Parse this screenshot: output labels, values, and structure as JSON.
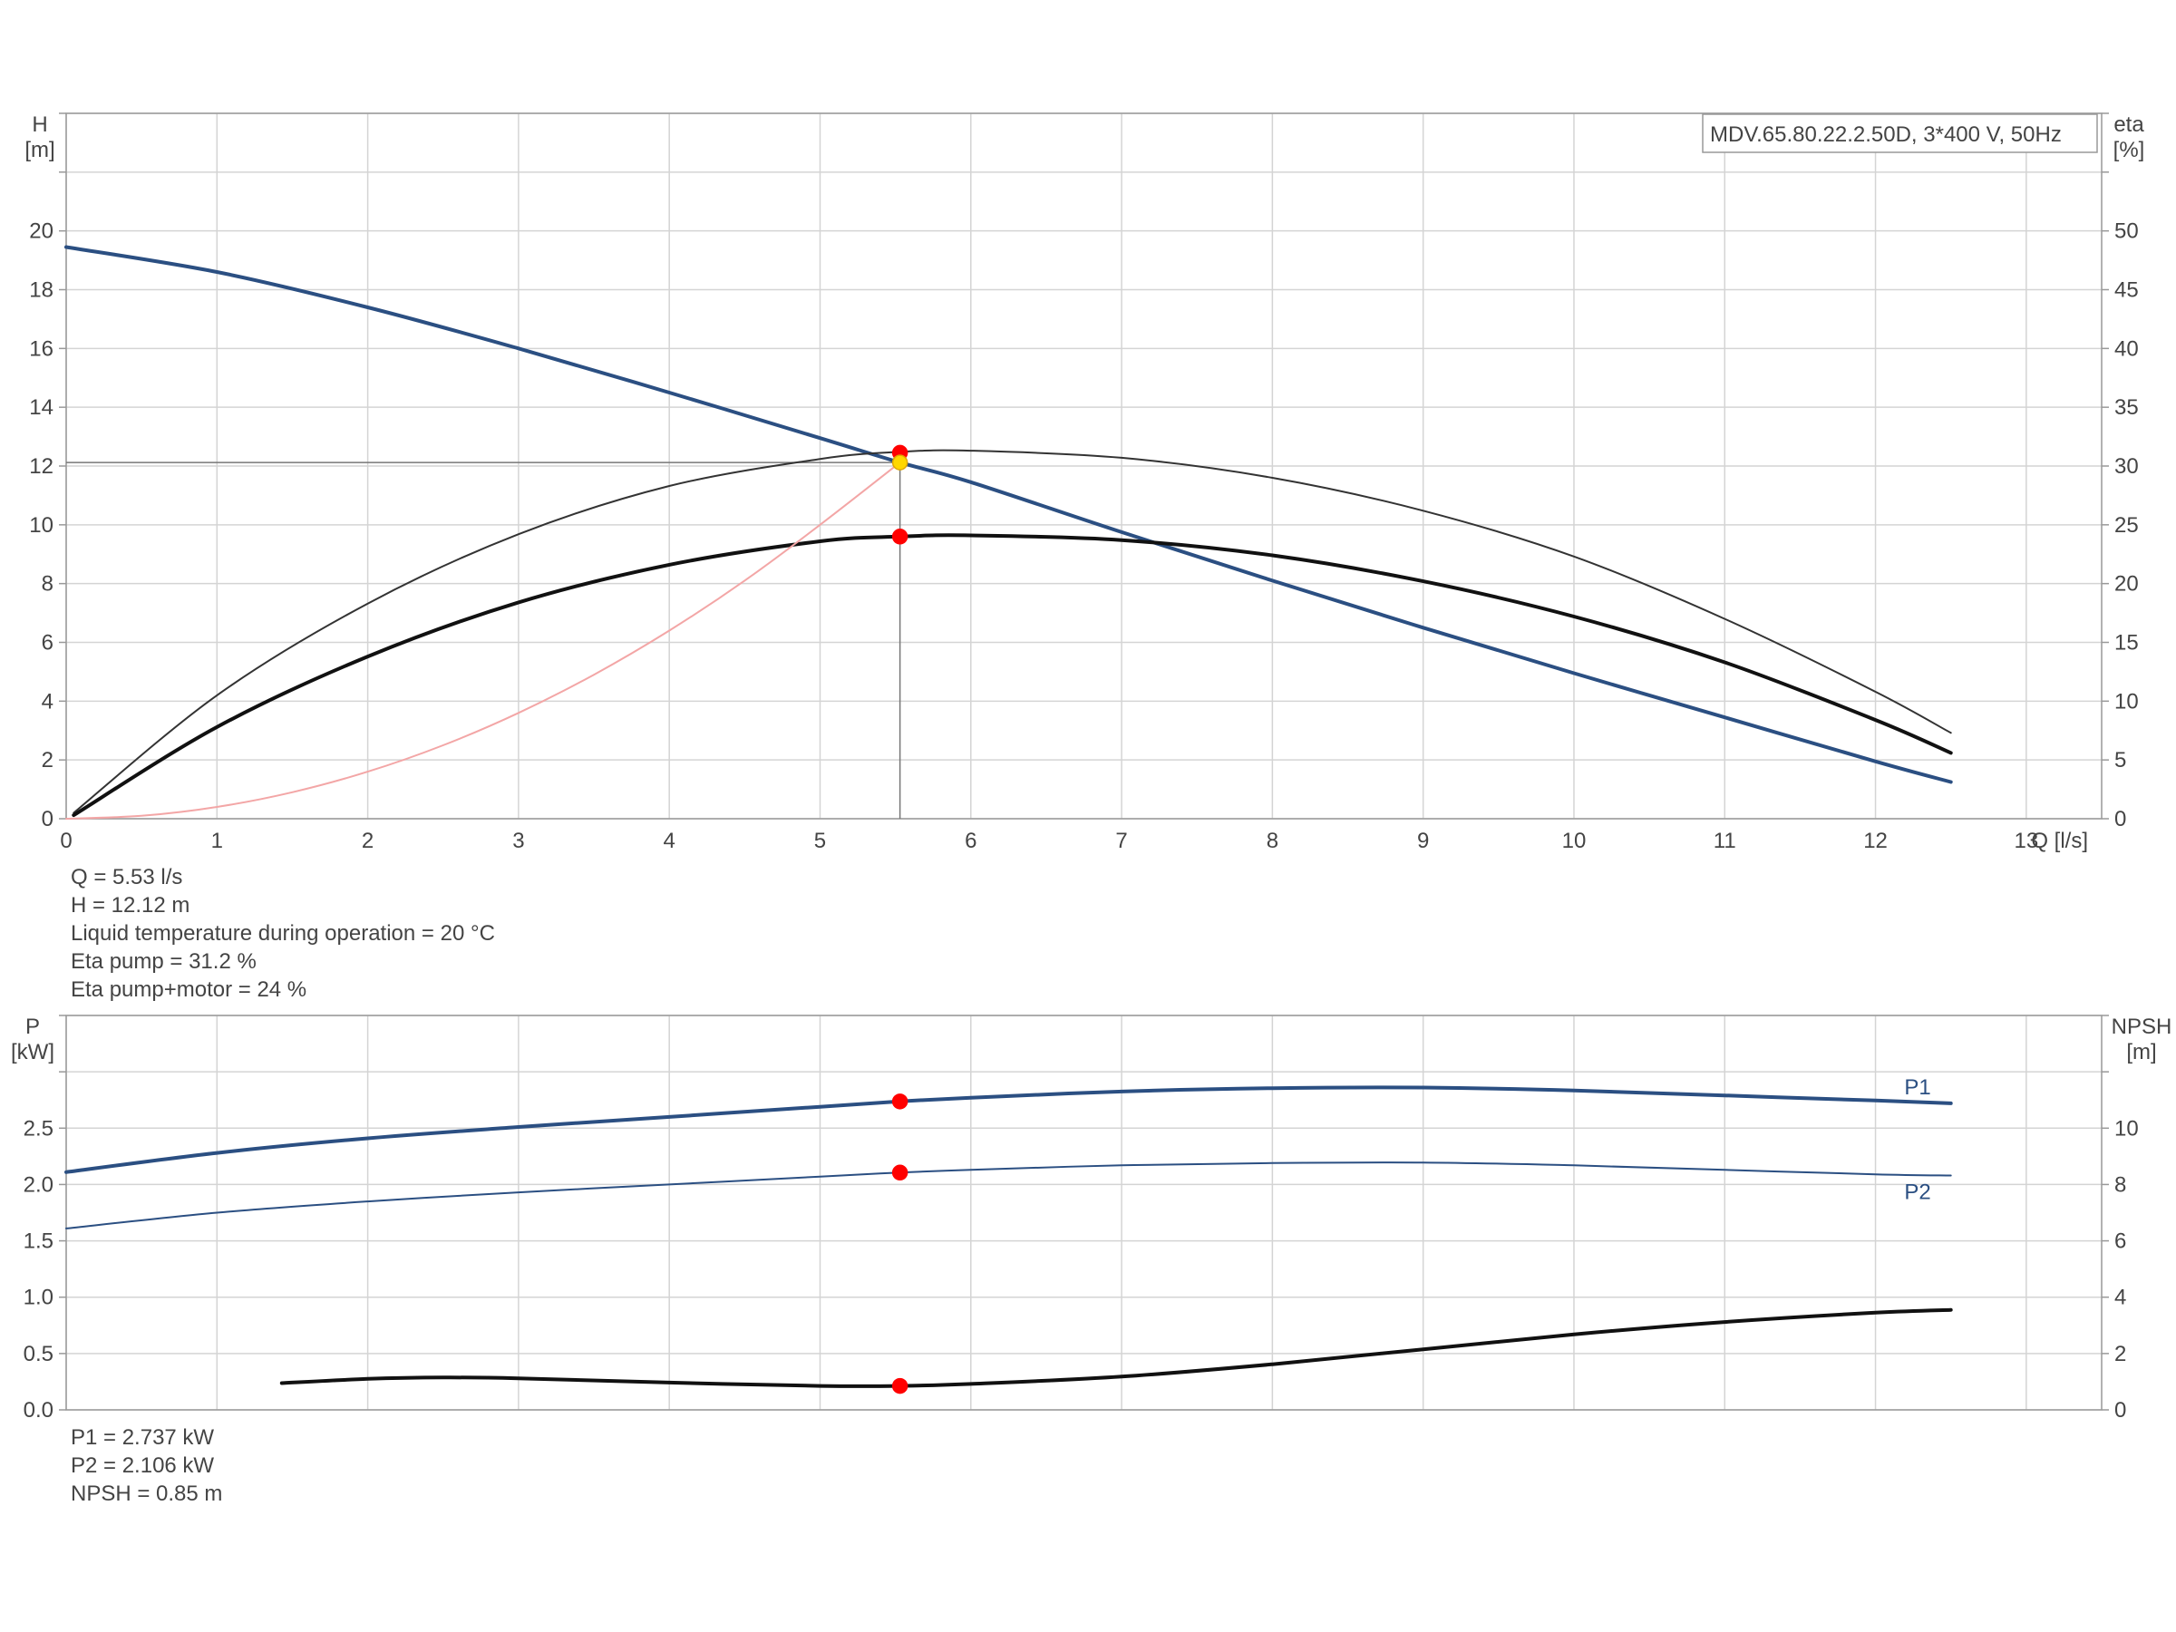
{
  "chart_data": [
    {
      "type": "line",
      "title": "MDV.65.80.22.2.50D, 3*400 V, 50Hz",
      "x_axis": {
        "label": "Q [l/s]",
        "range": [
          0,
          13.5
        ],
        "ticks": [
          0,
          1,
          2,
          3,
          4,
          5,
          6,
          7,
          8,
          9,
          10,
          11,
          12,
          13
        ],
        "tick_labels": [
          "0",
          "1",
          "2",
          "3",
          "4",
          "5",
          "6",
          "7",
          "8",
          "9",
          "10",
          "11",
          "12",
          "13"
        ]
      },
      "y_axis_left": {
        "label_line1": "H",
        "label_line2": "[m]",
        "range": [
          0,
          24
        ],
        "ticks": [
          0,
          2,
          4,
          6,
          8,
          10,
          12,
          14,
          16,
          18,
          20,
          22,
          24
        ],
        "tick_labels": [
          "0",
          "2",
          "4",
          "6",
          "8",
          "10",
          "12",
          "14",
          "16",
          "18",
          "20",
          "",
          ""
        ]
      },
      "y_axis_right": {
        "label_line1": "eta",
        "label_line2": "[%]",
        "range": [
          0,
          60
        ],
        "ticks": [
          0,
          5,
          10,
          15,
          20,
          25,
          30,
          35,
          40,
          45,
          50,
          55,
          60
        ],
        "tick_labels": [
          "0",
          "5",
          "10",
          "15",
          "20",
          "25",
          "30",
          "35",
          "40",
          "45",
          "50",
          "",
          ""
        ]
      },
      "grid": true,
      "legend": "top-right",
      "series": [
        {
          "key": "head",
          "axis": "left",
          "color": "#2b4f82",
          "width": 4,
          "x": [
            0,
            1,
            2,
            3,
            4,
            5,
            5.53,
            6,
            7,
            8,
            9,
            10,
            11,
            12,
            12.5
          ],
          "y": [
            19.45,
            18.6,
            17.4,
            16.0,
            14.5,
            12.95,
            12.12,
            11.45,
            9.75,
            8.1,
            6.5,
            4.95,
            3.45,
            1.95,
            1.25
          ]
        },
        {
          "key": "eta-pump",
          "axis": "right",
          "color": "#333333",
          "width": 2,
          "x": [
            0.05,
            1,
            2,
            3,
            4,
            5,
            5.53,
            6,
            7,
            8,
            9,
            10,
            11,
            12,
            12.5
          ],
          "y": [
            0.5,
            10.5,
            18.3,
            24.2,
            28.3,
            30.6,
            31.2,
            31.3,
            30.7,
            29.0,
            26.2,
            22.3,
            17.0,
            10.8,
            7.3
          ]
        },
        {
          "key": "eta-pump-motor",
          "axis": "right",
          "color": "#111111",
          "width": 4,
          "x": [
            0.05,
            1,
            2,
            3,
            4,
            5,
            5.53,
            6,
            7,
            8,
            9,
            10,
            11,
            12,
            12.5
          ],
          "y": [
            0.3,
            7.8,
            13.8,
            18.4,
            21.6,
            23.6,
            24.0,
            24.1,
            23.7,
            22.4,
            20.2,
            17.2,
            13.3,
            8.4,
            5.6
          ]
        },
        {
          "key": "system-curve",
          "axis": "left",
          "color": "#f3a6a6",
          "width": 2,
          "x": [
            0,
            0.5,
            1,
            1.5,
            2,
            2.5,
            3,
            3.5,
            4,
            4.5,
            5,
            5.53
          ],
          "y": [
            0,
            0.1,
            0.4,
            0.9,
            1.6,
            2.5,
            3.6,
            4.9,
            6.4,
            8.1,
            10.0,
            12.12
          ]
        }
      ],
      "operating_point": {
        "q": 5.53,
        "h": 12.12
      },
      "markers": [
        {
          "x": 5.53,
          "y": 12.45,
          "axis": "left",
          "color": "#ff0000"
        },
        {
          "x": 5.53,
          "y": 24.0,
          "axis": "right",
          "color": "#ff0000"
        },
        {
          "x": 5.53,
          "y": 12.12,
          "axis": "left",
          "color": "#ffd700"
        }
      ]
    },
    {
      "type": "line",
      "x_axis": {
        "range": [
          0,
          13.5
        ],
        "ticks": [
          0,
          1,
          2,
          3,
          4,
          5,
          6,
          7,
          8,
          9,
          10,
          11,
          12,
          13
        ]
      },
      "y_axis_left": {
        "label_line1": "P",
        "label_line2": "[kW]",
        "range": [
          0,
          3.5
        ],
        "ticks": [
          0,
          0.5,
          1.0,
          1.5,
          2.0,
          2.5,
          3.0,
          3.5
        ],
        "tick_labels": [
          "0.0",
          "0.5",
          "1.0",
          "1.5",
          "2.0",
          "2.5",
          "",
          ""
        ]
      },
      "y_axis_right": {
        "label_line1": "NPSH",
        "label_line2": "[m]",
        "range": [
          0,
          14
        ],
        "ticks": [
          0,
          2,
          4,
          6,
          8,
          10,
          12,
          14
        ],
        "tick_labels": [
          "0",
          "2",
          "4",
          "6",
          "8",
          "10",
          "",
          ""
        ]
      },
      "grid": true,
      "series": [
        {
          "key": "p1",
          "name": "P1",
          "axis": "left",
          "color": "#2b4f82",
          "width": 4,
          "x": [
            0,
            1,
            2,
            3,
            4,
            5,
            5.53,
            6,
            7,
            8,
            9,
            10,
            11,
            12,
            12.5
          ],
          "y": [
            2.11,
            2.28,
            2.41,
            2.51,
            2.6,
            2.69,
            2.737,
            2.77,
            2.825,
            2.855,
            2.86,
            2.835,
            2.79,
            2.745,
            2.72
          ]
        },
        {
          "key": "p2",
          "name": "P2",
          "axis": "left",
          "color": "#2b4f82",
          "width": 2,
          "x": [
            0,
            1,
            2,
            3,
            4,
            5,
            5.53,
            6,
            7,
            8,
            9,
            10,
            11,
            12,
            12.5
          ],
          "y": [
            1.61,
            1.75,
            1.85,
            1.93,
            2.0,
            2.07,
            2.106,
            2.13,
            2.17,
            2.19,
            2.195,
            2.17,
            2.13,
            2.09,
            2.08
          ]
        },
        {
          "key": "npsh",
          "axis": "right",
          "color": "#111111",
          "width": 4,
          "x": [
            1.43,
            2,
            2.5,
            3,
            4,
            5,
            5.53,
            6,
            7,
            8,
            9,
            10,
            11,
            12,
            12.5
          ],
          "y": [
            0.95,
            1.1,
            1.15,
            1.12,
            0.97,
            0.85,
            0.85,
            0.92,
            1.18,
            1.62,
            2.15,
            2.68,
            3.12,
            3.45,
            3.55
          ]
        }
      ],
      "markers": [
        {
          "x": 5.53,
          "y": 2.737,
          "axis": "left",
          "color": "#ff0000"
        },
        {
          "x": 5.53,
          "y": 2.106,
          "axis": "left",
          "color": "#ff0000"
        },
        {
          "x": 5.53,
          "y": 0.85,
          "axis": "right",
          "color": "#ff0000"
        }
      ]
    }
  ],
  "info_top": [
    "Q = 5.53 l/s",
    "H = 12.12 m",
    "Liquid temperature during operation = 20 °C",
    "Eta pump = 31.2 %",
    "Eta pump+motor = 24 %"
  ],
  "info_bottom": [
    "P1 = 2.737 kW",
    "P2 = 2.106 kW",
    "NPSH = 0.85 m"
  ],
  "colors": {
    "grid": "#d4d4d4",
    "axis": "#999999",
    "text": "#444444",
    "marker_red": "#ff0000",
    "marker_yellow": "#ffd700"
  }
}
